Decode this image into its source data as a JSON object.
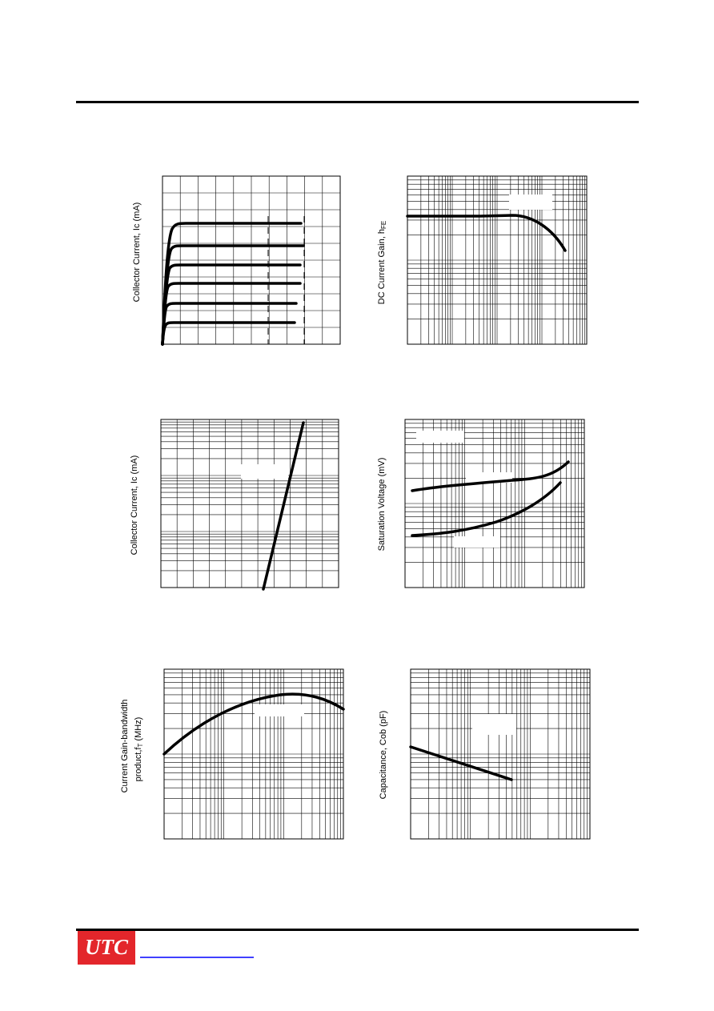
{
  "charts": [
    {
      "y_label": "Collector Current, Ic  (mA)"
    },
    {
      "y_label": "DC Current Gain, h",
      "y_label_sub": "FE"
    },
    {
      "y_label": "Collector Current, Ic  (mA)"
    },
    {
      "y_label": "Saturation Voltage (mV)"
    },
    {
      "y_label_lines": [
        "Current Gain-bandwidth",
        "product,f"
      ],
      "y_label_sub": "T",
      "y_label_suffix": " (MHz)"
    },
    {
      "y_label": "Capacitance, Cob (pF)"
    }
  ],
  "footer": {
    "logo": "UTC"
  }
}
